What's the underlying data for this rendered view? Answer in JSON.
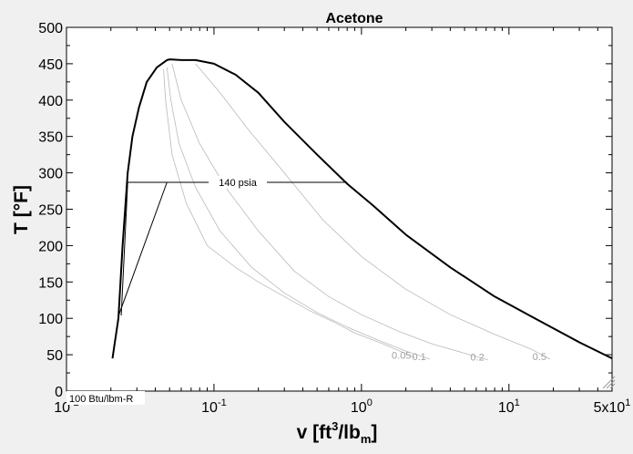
{
  "chart_data": {
    "type": "line",
    "title": "Acetone",
    "xlabel_main": "v [ft",
    "xlabel_sup": "3",
    "xlabel_mid": "/lb",
    "xlabel_sub": "m",
    "xlabel_end": "]",
    "ylabel": "T [°F]",
    "x_scale": "log",
    "xlim": [
      0.01,
      50
    ],
    "ylim": [
      0,
      500
    ],
    "y_ticks": [
      "0",
      "50",
      "100",
      "150",
      "200",
      "250",
      "300",
      "350",
      "400",
      "450",
      "500"
    ],
    "x_ticks": [
      {
        "value": 0.01,
        "base": "10",
        "exp": "-2"
      },
      {
        "value": 0.1,
        "base": "10",
        "exp": "-1"
      },
      {
        "value": 1,
        "base": "10",
        "exp": "0"
      },
      {
        "value": 10,
        "base": "10",
        "exp": "1"
      },
      {
        "value": 50,
        "base": "5x10",
        "exp": "1"
      }
    ],
    "grid": false,
    "entropy_label": "100 Btu/lbm-R",
    "series": [
      {
        "role": "saturation-dome",
        "x": [
          0.0205,
          0.0225,
          0.024,
          0.026,
          0.028,
          0.031,
          0.035,
          0.041,
          0.048,
          0.0503,
          0.06,
          0.075,
          0.1,
          0.14,
          0.2,
          0.3,
          0.5,
          0.8,
          1.2,
          2,
          4,
          8,
          15,
          30,
          50
        ],
        "y": [
          45,
          100,
          200,
          300,
          350,
          390,
          425,
          445,
          455,
          456,
          455,
          455,
          450,
          435,
          410,
          370,
          325,
          285,
          255,
          215,
          170,
          130,
          100,
          67,
          45
        ]
      },
      {
        "role": "isobar",
        "label": "140 psia",
        "x": [
          0.0235,
          0.0255,
          0.026,
          0.8
        ],
        "y": [
          104,
          250,
          287,
          287
        ]
      },
      {
        "role": "isentrope",
        "label": "100 Btu/lbm-R",
        "x": [
          0.0225,
          0.048
        ],
        "y": [
          103,
          287
        ]
      },
      {
        "role": "quality-line",
        "label": "0.05",
        "x": [
          0.0455,
          0.047,
          0.052,
          0.065,
          0.09,
          0.14,
          0.2,
          0.3,
          0.45,
          0.65,
          0.9,
          1.4,
          2.3
        ],
        "y": [
          442,
          400,
          325,
          258,
          200,
          170,
          150,
          130,
          110,
          95,
          80,
          65,
          46
        ]
      },
      {
        "role": "quality-line",
        "label": "0.1",
        "x": [
          0.048,
          0.051,
          0.058,
          0.075,
          0.11,
          0.18,
          0.3,
          0.5,
          0.8,
          1.3,
          2,
          2.9
        ],
        "y": [
          445,
          400,
          340,
          280,
          220,
          170,
          135,
          108,
          88,
          70,
          55,
          44
        ]
      },
      {
        "role": "quality-line",
        "label": "0.2",
        "x": [
          0.052,
          0.06,
          0.08,
          0.12,
          0.2,
          0.35,
          0.6,
          1,
          1.8,
          3,
          5,
          7.2
        ],
        "y": [
          450,
          400,
          340,
          280,
          220,
          165,
          130,
          105,
          82,
          65,
          52,
          43
        ]
      },
      {
        "role": "quality-line",
        "label": "0.5",
        "x": [
          0.075,
          0.11,
          0.17,
          0.3,
          0.55,
          1,
          2,
          4,
          8,
          14,
          19
        ],
        "y": [
          450,
          410,
          360,
          300,
          235,
          185,
          140,
          105,
          78,
          58,
          44
        ]
      }
    ]
  }
}
